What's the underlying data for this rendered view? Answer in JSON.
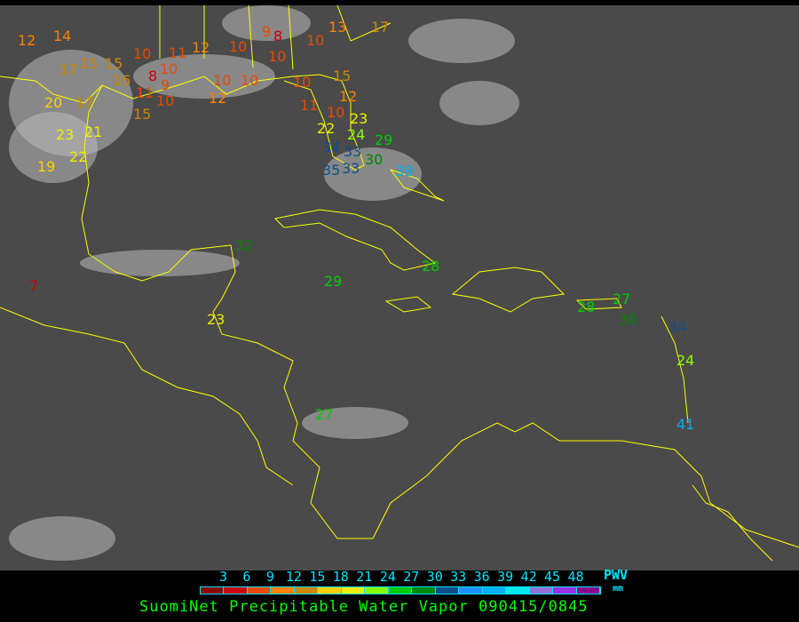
{
  "legend": {
    "ticks": [
      "3",
      "6",
      "9",
      "12",
      "15",
      "18",
      "21",
      "24",
      "27",
      "30",
      "33",
      "36",
      "39",
      "42",
      "45",
      "48"
    ],
    "colors": [
      "#8b0000",
      "#cc0000",
      "#e84a00",
      "#ff8000",
      "#cc8800",
      "#ffd000",
      "#eeee00",
      "#88ff00",
      "#00cc00",
      "#008800",
      "#104e8b",
      "#1e90ff",
      "#00b0f0",
      "#00e8e8",
      "#9370db",
      "#9a30e8",
      "#8b008b"
    ],
    "unit_label": "PWV",
    "unit": "mm"
  },
  "title": "SuomiNet Precipitable Water Vapor 090415/0845",
  "map": {
    "land_outline_color": "#ffff00",
    "background_color": "#4a4a4a",
    "stations": [
      "12",
      "14",
      "17",
      "15",
      "15",
      "16",
      "10",
      "8",
      "10",
      "9",
      "11",
      "10",
      "11",
      "12",
      "10",
      "9",
      "8",
      "10",
      "10",
      "13",
      "17",
      "15",
      "12",
      "10",
      "22",
      "23",
      "24",
      "33",
      "29",
      "34",
      "35",
      "33",
      "30",
      "39",
      "20",
      "17",
      "23",
      "21",
      "22",
      "19",
      "7",
      "32",
      "29",
      "28",
      "23",
      "28",
      "27",
      "30",
      "34",
      "24",
      "41",
      "27",
      "15",
      "12",
      "10",
      "10",
      "10",
      "11"
    ]
  }
}
